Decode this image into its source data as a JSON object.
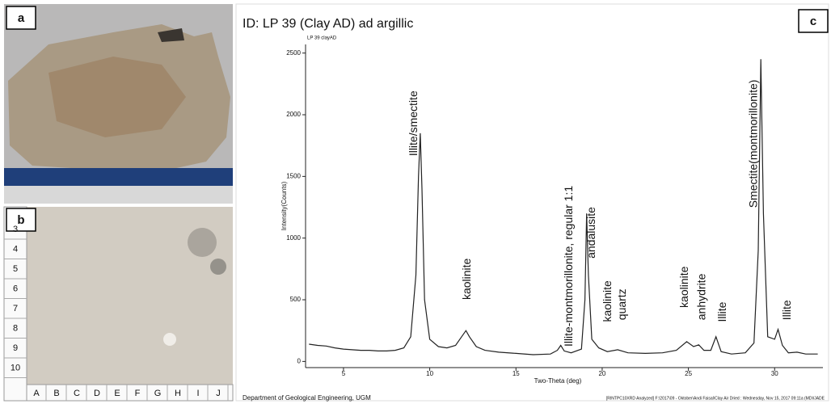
{
  "panel_labels": [
    "a",
    "b",
    "c"
  ],
  "ruler": {
    "rows": [
      "3",
      "4",
      "5",
      "6",
      "7",
      "8",
      "9",
      "10"
    ],
    "columns": [
      "A",
      "B",
      "C",
      "D",
      "E",
      "F",
      "G",
      "H",
      "I",
      "J"
    ]
  },
  "chart_data": {
    "type": "line",
    "title": "ID: LP 39 (Clay AD) ad argillic",
    "subtitle": "LP 39 clayAD",
    "x_label": "Two-Theta (deg)",
    "y_label": "Intensity(Counts)",
    "footer_left": "Department of Geological Engineering, UGM",
    "footer_right": "[RINTPC10XRD Analyzed] F:\\2017\\09 - Oktober\\Andi Faisal\\Clay Air Dried : Wednesday, Nov 15, 2017 09:11a (MDI/JADE",
    "color": "#222222",
    "x": [
      3,
      3.5,
      4,
      4.5,
      5,
      5.5,
      6,
      6.5,
      7,
      7.5,
      8,
      8.5,
      8.9,
      9.2,
      9.35,
      9.45,
      9.55,
      9.7,
      10,
      10.5,
      11,
      11.5,
      11.9,
      12.1,
      12.3,
      12.7,
      13.2,
      14,
      15,
      16,
      17,
      17.4,
      17.6,
      17.8,
      18.2,
      18.8,
      19.0,
      19.1,
      19.2,
      19.4,
      19.8,
      20.3,
      20.9,
      21.5,
      22.5,
      23.5,
      24.3,
      24.9,
      25.3,
      25.6,
      25.9,
      26.3,
      26.6,
      26.9,
      27.5,
      28.3,
      28.8,
      29.05,
      29.2,
      29.35,
      29.6,
      30.0,
      30.2,
      30.45,
      30.8,
      31.3,
      31.8,
      32.5
    ],
    "values": [
      140,
      130,
      125,
      110,
      100,
      95,
      90,
      90,
      85,
      85,
      90,
      110,
      200,
      700,
      1500,
      1850,
      1400,
      500,
      180,
      120,
      110,
      130,
      210,
      250,
      200,
      120,
      90,
      75,
      65,
      55,
      60,
      90,
      130,
      85,
      70,
      100,
      500,
      1200,
      700,
      180,
      110,
      80,
      95,
      70,
      65,
      70,
      90,
      160,
      120,
      135,
      90,
      90,
      200,
      80,
      60,
      70,
      150,
      900,
      2450,
      1200,
      200,
      180,
      260,
      130,
      70,
      75,
      60,
      60
    ],
    "xlim": [
      2.8,
      32.8
    ],
    "xticks": [
      5,
      10,
      15,
      20,
      25,
      30
    ],
    "ylim": [
      -50,
      2570
    ],
    "yticks": [
      0,
      500,
      1000,
      1500,
      2000,
      2500
    ],
    "annotations": [
      {
        "text": "Illite/smectite",
        "x": 9.1,
        "y": 1665
      },
      {
        "text": "kaolinite",
        "x": 12.2,
        "y": 500
      },
      {
        "text": "Illite-montmorillonite, regular 1:1",
        "x": 18.1,
        "y": 120
      },
      {
        "text": "andalusite",
        "x": 19.4,
        "y": 835
      },
      {
        "text": "kaolinite",
        "x": 20.35,
        "y": 320
      },
      {
        "text": "quartz",
        "x": 21.2,
        "y": 335
      },
      {
        "text": "kaolinite",
        "x": 24.8,
        "y": 435
      },
      {
        "text": "anhydrite",
        "x": 25.8,
        "y": 335
      },
      {
        "text": "Illite",
        "x": 27.0,
        "y": 320
      },
      {
        "text": "Smectite(montmorillonite)",
        "x": 28.8,
        "y": 1245
      },
      {
        "text": "Illite",
        "x": 30.75,
        "y": 335
      }
    ]
  }
}
